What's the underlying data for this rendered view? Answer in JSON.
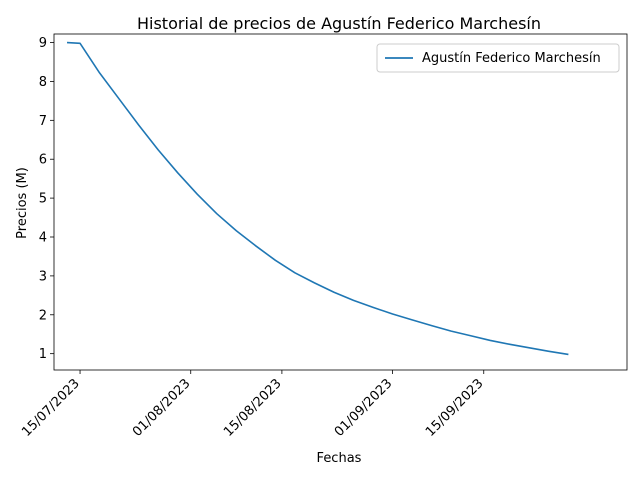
{
  "chart_data": {
    "type": "line",
    "title": "Historial de precios de Agustín Federico Marchesín",
    "xlabel": "Fechas",
    "ylabel": "Precios (M)",
    "xlim": [
      "2023-07-11",
      "2023-10-07"
    ],
    "ylim": [
      0.58,
      9.22
    ],
    "x_ticks": [
      {
        "date": "2023-07-15",
        "label": "15/07/2023"
      },
      {
        "date": "2023-08-01",
        "label": "01/08/2023"
      },
      {
        "date": "2023-08-15",
        "label": "15/08/2023"
      },
      {
        "date": "2023-09-01",
        "label": "01/09/2023"
      },
      {
        "date": "2023-09-15",
        "label": "15/09/2023"
      }
    ],
    "y_ticks": [
      1,
      2,
      3,
      4,
      5,
      6,
      7,
      8,
      9
    ],
    "y_tick_labels": [
      "1",
      "2",
      "3",
      "4",
      "5",
      "6",
      "7",
      "8",
      "9"
    ],
    "grid": false,
    "legend_position": "top-right",
    "series": [
      {
        "name": "Agustín Federico Marchesín",
        "color": "#1f77b4",
        "points": [
          {
            "x": "2023-07-13",
            "y": 9.0
          },
          {
            "x": "2023-07-15",
            "y": 8.98
          },
          {
            "x": "2023-07-18",
            "y": 8.22
          },
          {
            "x": "2023-07-21",
            "y": 7.55
          },
          {
            "x": "2023-07-24",
            "y": 6.88
          },
          {
            "x": "2023-07-27",
            "y": 6.24
          },
          {
            "x": "2023-07-30",
            "y": 5.65
          },
          {
            "x": "2023-08-02",
            "y": 5.1
          },
          {
            "x": "2023-08-05",
            "y": 4.6
          },
          {
            "x": "2023-08-08",
            "y": 4.16
          },
          {
            "x": "2023-08-11",
            "y": 3.77
          },
          {
            "x": "2023-08-14",
            "y": 3.4
          },
          {
            "x": "2023-08-17",
            "y": 3.08
          },
          {
            "x": "2023-08-20",
            "y": 2.82
          },
          {
            "x": "2023-08-23",
            "y": 2.58
          },
          {
            "x": "2023-08-26",
            "y": 2.37
          },
          {
            "x": "2023-08-29",
            "y": 2.19
          },
          {
            "x": "2023-09-01",
            "y": 2.02
          },
          {
            "x": "2023-09-04",
            "y": 1.87
          },
          {
            "x": "2023-09-07",
            "y": 1.72
          },
          {
            "x": "2023-09-10",
            "y": 1.58
          },
          {
            "x": "2023-09-13",
            "y": 1.46
          },
          {
            "x": "2023-09-16",
            "y": 1.34
          },
          {
            "x": "2023-09-19",
            "y": 1.24
          },
          {
            "x": "2023-09-22",
            "y": 1.15
          },
          {
            "x": "2023-09-25",
            "y": 1.06
          },
          {
            "x": "2023-09-28",
            "y": 0.98
          }
        ]
      }
    ]
  }
}
